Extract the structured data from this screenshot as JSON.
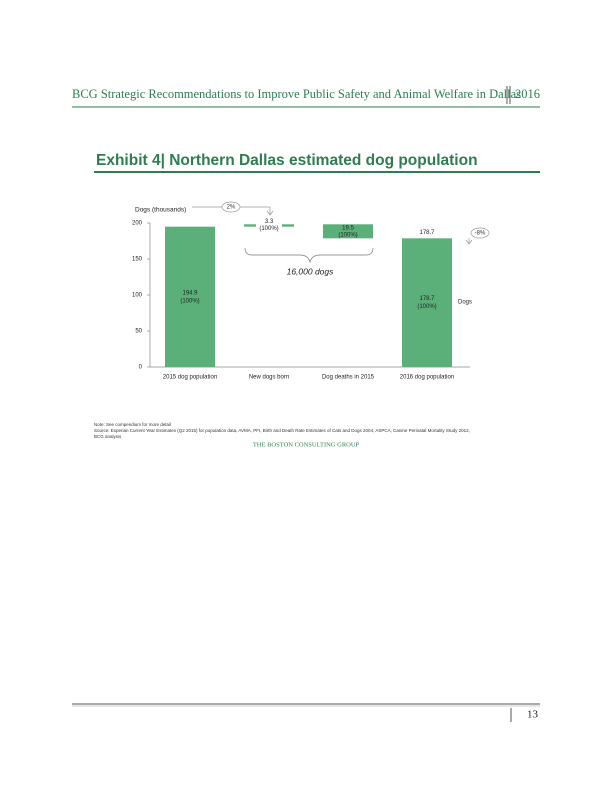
{
  "header": {
    "title": "BCG Strategic Recommendations to Improve Public Safety and Animal Welfare in Dallas",
    "year": "2016"
  },
  "exhibit_title": "Exhibit 4| Northern Dallas estimated dog population",
  "chart_data": {
    "type": "waterfall",
    "y_label": "Dogs (thousands)",
    "categories": [
      "2015 dog population",
      "New dogs born",
      "Dog deaths in 2015",
      "2016 dog population"
    ],
    "values": [
      194.9,
      3.3,
      19.5,
      178.7
    ],
    "measures": [
      "total",
      "increase",
      "decrease",
      "total"
    ],
    "share_labels": [
      "(100%)",
      "(100%)",
      "(100%)",
      "(100%)"
    ],
    "color": "#5bb07a",
    "ylim": [
      0,
      200
    ],
    "yticks": [
      0,
      50,
      100,
      150,
      200
    ],
    "annotations": {
      "growth": "2%",
      "decline": "-8%",
      "brace": "16,000 dogs",
      "side": "Dogs"
    }
  },
  "notes": [
    "Note: See compendium for more detail",
    "Source: Experian Current Year Estimates (Q2 2015) for population data, AVMA, PFI, Birth and Death Rate Estimates of Cats and Dogs 2004, ASPCA, Canine Perinatal Mortality Study 2012,",
    "BCG analysis"
  ],
  "logo": "THE BOSTON CONSULTING GROUP",
  "page_number": "13"
}
